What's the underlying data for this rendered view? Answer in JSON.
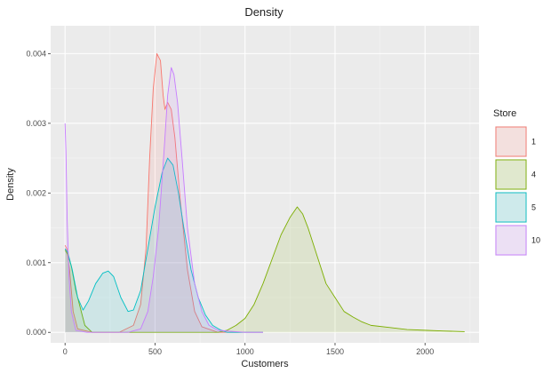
{
  "chart_data": {
    "type": "area",
    "title": "Density",
    "xlabel": "Customers",
    "ylabel": "Density",
    "xlim": [
      -80,
      2300
    ],
    "ylim": [
      -0.00015,
      0.0044
    ],
    "x_ticks": [
      0,
      500,
      1000,
      1500,
      2000
    ],
    "y_ticks": [
      0.0,
      0.001,
      0.002,
      0.003,
      0.004
    ],
    "x_tick_labels": [
      "0",
      "500",
      "1000",
      "1500",
      "2000"
    ],
    "y_tick_labels": [
      "0.000",
      "0.001",
      "0.002",
      "0.003",
      "0.004"
    ],
    "grid": true,
    "legend": {
      "title": "Store",
      "position": "right"
    },
    "series": [
      {
        "name": "1",
        "color": "#F8766D",
        "points": [
          [
            0,
            0.00125
          ],
          [
            10,
            0.0012
          ],
          [
            25,
            0.0009
          ],
          [
            45,
            0.0003
          ],
          [
            70,
            5e-05
          ],
          [
            150,
            0.0
          ],
          [
            300,
            0.0
          ],
          [
            380,
            0.0001
          ],
          [
            420,
            0.0004
          ],
          [
            450,
            0.0012
          ],
          [
            470,
            0.0025
          ],
          [
            490,
            0.0035
          ],
          [
            510,
            0.004
          ],
          [
            530,
            0.0039
          ],
          [
            545,
            0.0034
          ],
          [
            555,
            0.0032
          ],
          [
            570,
            0.0033
          ],
          [
            590,
            0.0032
          ],
          [
            610,
            0.0028
          ],
          [
            640,
            0.0019
          ],
          [
            680,
            0.0009
          ],
          [
            720,
            0.0003
          ],
          [
            760,
            8e-05
          ],
          [
            850,
            0.0
          ],
          [
            1050,
            0.0
          ],
          [
            1100,
            0.0
          ]
        ]
      },
      {
        "name": "4",
        "color": "#7CAE00",
        "points": [
          [
            0,
            0.00118
          ],
          [
            15,
            0.00112
          ],
          [
            35,
            0.00095
          ],
          [
            60,
            0.0006
          ],
          [
            80,
            0.0004
          ],
          [
            110,
            0.0001
          ],
          [
            150,
            0.0
          ],
          [
            850,
            0.0
          ],
          [
            900,
            3e-05
          ],
          [
            950,
            0.0001
          ],
          [
            1000,
            0.0002
          ],
          [
            1050,
            0.0004
          ],
          [
            1100,
            0.0007
          ],
          [
            1150,
            0.00105
          ],
          [
            1200,
            0.0014
          ],
          [
            1250,
            0.00165
          ],
          [
            1290,
            0.0018
          ],
          [
            1320,
            0.0017
          ],
          [
            1350,
            0.0015
          ],
          [
            1400,
            0.0011
          ],
          [
            1450,
            0.0007
          ],
          [
            1500,
            0.0005
          ],
          [
            1550,
            0.0003
          ],
          [
            1600,
            0.00022
          ],
          [
            1650,
            0.00015
          ],
          [
            1700,
            0.0001
          ],
          [
            1800,
            7e-05
          ],
          [
            1900,
            4e-05
          ],
          [
            2000,
            3e-05
          ],
          [
            2100,
            2e-05
          ],
          [
            2220,
            1e-05
          ]
        ]
      },
      {
        "name": "5",
        "color": "#00BFC4",
        "points": [
          [
            0,
            0.0012
          ],
          [
            15,
            0.00115
          ],
          [
            40,
            0.0009
          ],
          [
            70,
            0.0005
          ],
          [
            100,
            0.00032
          ],
          [
            130,
            0.00045
          ],
          [
            170,
            0.0007
          ],
          [
            210,
            0.00085
          ],
          [
            240,
            0.00088
          ],
          [
            270,
            0.0008
          ],
          [
            310,
            0.0005
          ],
          [
            350,
            0.0003
          ],
          [
            380,
            0.00032
          ],
          [
            420,
            0.0006
          ],
          [
            460,
            0.0012
          ],
          [
            500,
            0.0018
          ],
          [
            540,
            0.0023
          ],
          [
            570,
            0.0025
          ],
          [
            600,
            0.0024
          ],
          [
            630,
            0.002
          ],
          [
            660,
            0.0015
          ],
          [
            700,
            0.0009
          ],
          [
            740,
            0.0005
          ],
          [
            780,
            0.00025
          ],
          [
            820,
            0.0001
          ],
          [
            860,
            4e-05
          ],
          [
            900,
            0.0
          ],
          [
            1100,
            0.0
          ]
        ]
      },
      {
        "name": "10",
        "color": "#C77CFF",
        "points": [
          [
            0,
            0.003
          ],
          [
            5,
            0.0026
          ],
          [
            12,
            0.0016
          ],
          [
            22,
            0.0008
          ],
          [
            35,
            0.0003
          ],
          [
            60,
            3e-05
          ],
          [
            120,
            0.0
          ],
          [
            350,
            0.0
          ],
          [
            420,
            5e-05
          ],
          [
            460,
            0.0003
          ],
          [
            490,
            0.0008
          ],
          [
            520,
            0.0015
          ],
          [
            550,
            0.0026
          ],
          [
            570,
            0.0034
          ],
          [
            590,
            0.0038
          ],
          [
            605,
            0.0037
          ],
          [
            625,
            0.0033
          ],
          [
            650,
            0.0025
          ],
          [
            680,
            0.0015
          ],
          [
            720,
            0.0007
          ],
          [
            760,
            0.0003
          ],
          [
            800,
            0.0001
          ],
          [
            850,
            3e-05
          ],
          [
            1000,
            0.0
          ],
          [
            1100,
            0.0
          ]
        ]
      }
    ]
  }
}
